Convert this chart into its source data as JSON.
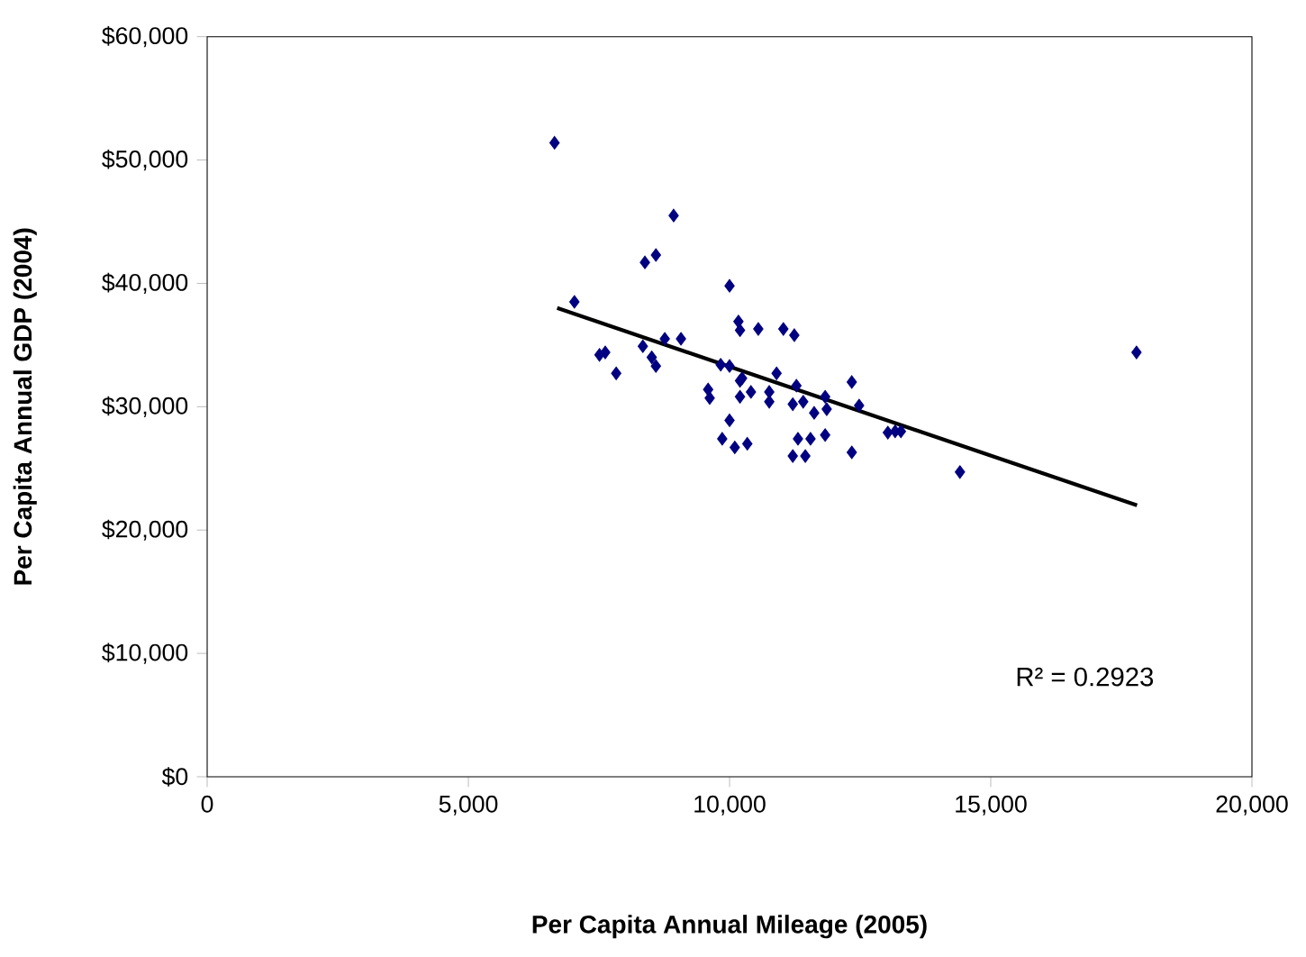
{
  "chart_data": {
    "type": "scatter",
    "xlabel": "Per Capita Annual Mileage (2005)",
    "ylabel": "Per Capita Annual GDP (2004)",
    "xlim": [
      0,
      20000
    ],
    "ylim": [
      0,
      60000
    ],
    "xticks": [
      0,
      {
        "value": 5000,
        "label": "5,000"
      },
      {
        "value": 10000,
        "label": "10,000"
      },
      {
        "value": 15000,
        "label": "15,000"
      },
      {
        "value": 20000,
        "label": "20,000"
      }
    ],
    "yticks": [
      {
        "value": 0,
        "label": "$0"
      },
      {
        "value": 10000,
        "label": "$10,000"
      },
      {
        "value": 20000,
        "label": "$20,000"
      },
      {
        "value": 30000,
        "label": "$30,000"
      },
      {
        "value": 40000,
        "label": "$40,000"
      },
      {
        "value": 50000,
        "label": "$50,000"
      },
      {
        "value": 60000,
        "label": "$60,000"
      }
    ],
    "grid": false,
    "marker": "diamond",
    "annotations": [
      "R² = 0.2923"
    ],
    "series": [
      {
        "color": "#000080",
        "x": [
          6650,
          8930,
          8380,
          8590,
          10000,
          7030,
          7510,
          7620,
          7830,
          8340,
          8510,
          8590,
          8760,
          9070,
          10170,
          10200,
          10550,
          11030,
          11240,
          9590,
          9620,
          10000,
          10200,
          10200,
          10410,
          10760,
          10760,
          10900,
          11280,
          11210,
          11410,
          11620,
          11830,
          11860,
          12340,
          12480,
          10000,
          9860,
          10100,
          10340,
          11310,
          11550,
          11830,
          11210,
          11450,
          12340,
          13030,
          13170,
          13280,
          14410,
          17790,
          9830,
          10240
        ],
        "values": [
          51400,
          45500,
          41700,
          42300,
          39800,
          38500,
          34200,
          34400,
          32700,
          34900,
          34000,
          33300,
          35500,
          35500,
          36900,
          36200,
          36300,
          36300,
          35800,
          31400,
          30700,
          33300,
          32100,
          30800,
          31200,
          31200,
          30400,
          32700,
          31700,
          30200,
          30400,
          29500,
          30800,
          29800,
          32000,
          30100,
          28900,
          27400,
          26700,
          27000,
          27400,
          27400,
          27700,
          26000,
          26000,
          26300,
          27900,
          28000,
          28000,
          24700,
          34400,
          33400,
          32300
        ]
      },
      {
        "type": "line",
        "color": "#000000",
        "marker": "none",
        "line_style": "solid",
        "x": [
          6700,
          17800
        ],
        "values": [
          38000,
          22000
        ]
      }
    ]
  }
}
